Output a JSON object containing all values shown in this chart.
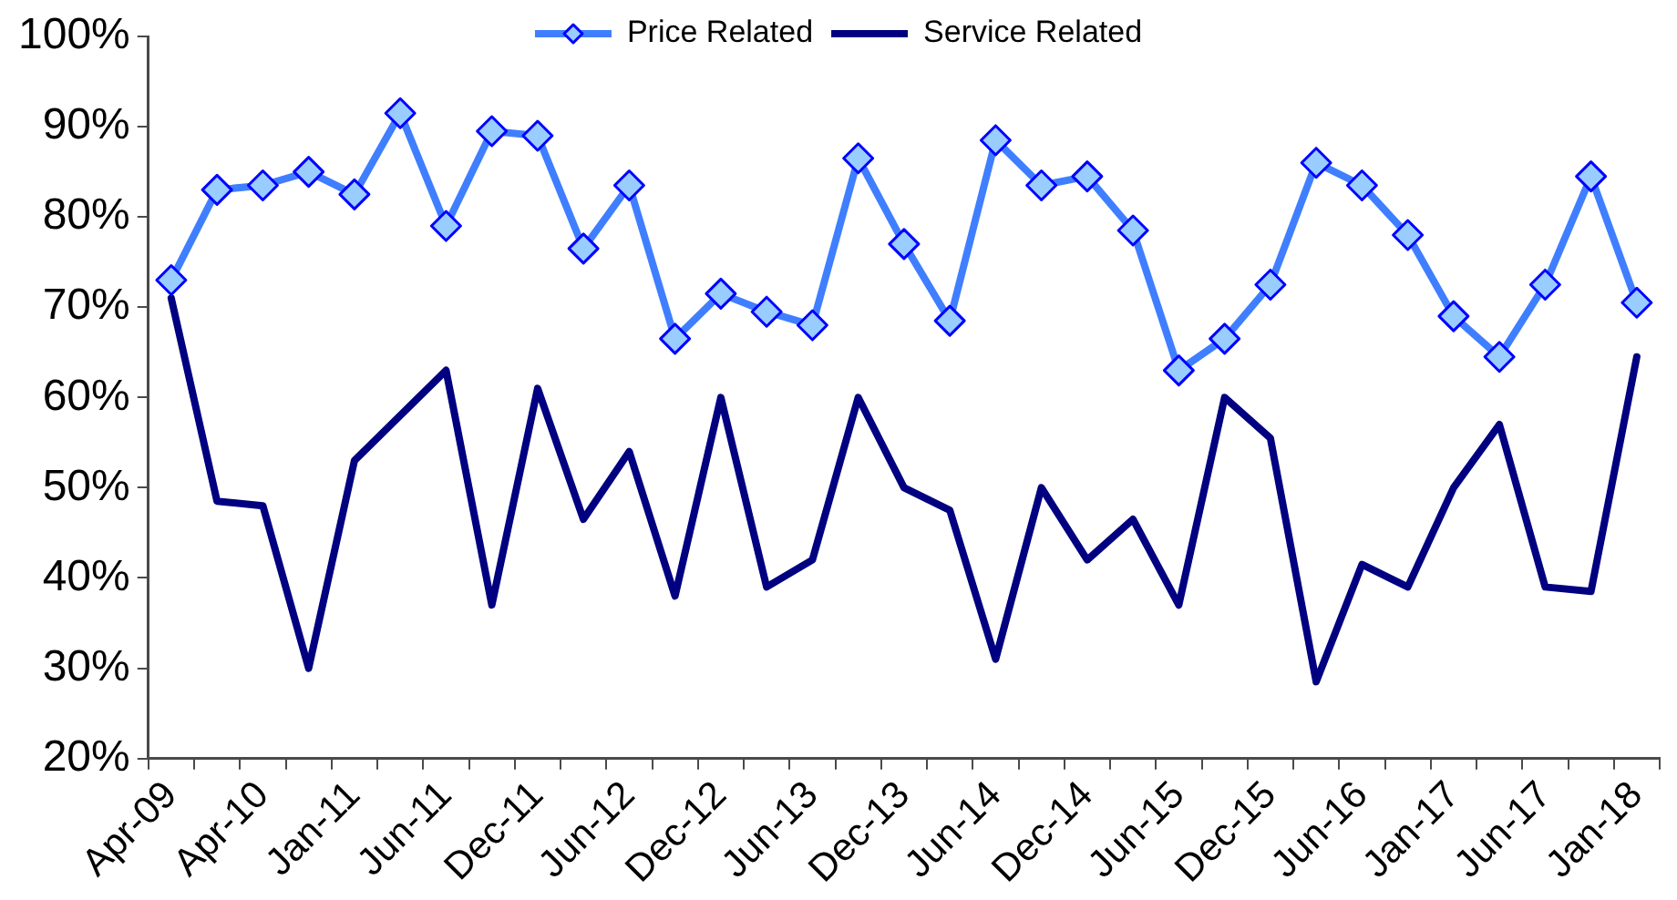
{
  "chart_data": {
    "type": "line",
    "categories": [
      "Apr-09",
      null,
      "Apr-10",
      null,
      "Jan-11",
      null,
      "Jun-11",
      null,
      "Dec-11",
      null,
      "Jun-12",
      null,
      "Dec-12",
      null,
      "Jun-13",
      null,
      "Dec-13",
      null,
      "Jun-14",
      null,
      "Dec-14",
      null,
      "Jun-15",
      null,
      "Dec-15",
      null,
      "Jun-16",
      null,
      "Jan-17",
      null,
      "Jun-17",
      null,
      "Jan-18"
    ],
    "series": [
      {
        "name": "Price Related",
        "color": "#3f7fff",
        "marker": "diamond",
        "values": [
          73,
          83,
          83.5,
          85,
          82.5,
          91.5,
          79,
          89.5,
          89,
          76.5,
          83.5,
          66.5,
          71.5,
          69.5,
          68,
          86.5,
          77,
          68.5,
          88.5,
          83.5,
          84.5,
          78.5,
          63,
          66.5,
          72.5,
          86,
          83.5,
          78,
          69,
          64.5,
          72.5,
          84.5,
          70.5
        ]
      },
      {
        "name": "Service Related",
        "color": "#000080",
        "marker": "none",
        "values": [
          71,
          48.5,
          48,
          30,
          53,
          58,
          63,
          37,
          61,
          46.5,
          54,
          38,
          60,
          39,
          42,
          60,
          50,
          47.5,
          31,
          50,
          42,
          46.5,
          37,
          60,
          55.5,
          28.5,
          41.5,
          39,
          50,
          57,
          39,
          38.5,
          64.5
        ]
      }
    ],
    "ylim": [
      20,
      100
    ],
    "yticks": [
      {
        "value": 20,
        "label": "20%"
      },
      {
        "value": 30,
        "label": "30%"
      },
      {
        "value": 40,
        "label": "40%"
      },
      {
        "value": 50,
        "label": "50%"
      },
      {
        "value": 60,
        "label": "60%"
      },
      {
        "value": 70,
        "label": "70%"
      },
      {
        "value": 80,
        "label": "80%"
      },
      {
        "value": 90,
        "label": "90%"
      },
      {
        "value": 100,
        "label": "100%"
      }
    ],
    "grid": false,
    "legend": "top",
    "line_style": "solid"
  }
}
